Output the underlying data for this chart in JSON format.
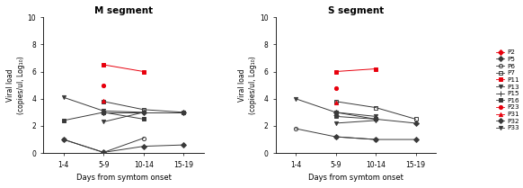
{
  "title_left": "M segment",
  "title_right": "S segment",
  "xlabel": "Days from symtom onset",
  "ylabel": "Viral load\n(copies/ul, Log₁₀)",
  "xtick_labels": [
    "1-4",
    "5-9",
    "10-14",
    "15-19"
  ],
  "ylim": [
    0,
    10
  ],
  "yticks": [
    0,
    2,
    4,
    6,
    8,
    10
  ],
  "patients": {
    "P2": {
      "color": "#e8000d",
      "marker": "D",
      "dead": true,
      "mfc": "#e8000d"
    },
    "P5": {
      "color": "#3a3a3a",
      "marker": "D",
      "dead": false,
      "mfc": "#3a3a3a"
    },
    "P6": {
      "color": "#3a3a3a",
      "marker": "o",
      "dead": false,
      "mfc": "none"
    },
    "P7": {
      "color": "#3a3a3a",
      "marker": "s",
      "dead": false,
      "mfc": "none"
    },
    "P11": {
      "color": "#e8000d",
      "marker": "s",
      "dead": true,
      "mfc": "#e8000d"
    },
    "P13": {
      "color": "#3a3a3a",
      "marker": "v",
      "dead": false,
      "mfc": "#3a3a3a"
    },
    "P15": {
      "color": "#3a3a3a",
      "marker": "+",
      "dead": false,
      "mfc": "#3a3a3a"
    },
    "P16": {
      "color": "#3a3a3a",
      "marker": "s",
      "dead": false,
      "mfc": "#3a3a3a"
    },
    "P23": {
      "color": "#e8000d",
      "marker": "o",
      "dead": true,
      "mfc": "#e8000d"
    },
    "P31": {
      "color": "#e8000d",
      "marker": "^",
      "dead": true,
      "mfc": "#e8000d"
    },
    "P32": {
      "color": "#3a3a3a",
      "marker": "D",
      "dead": false,
      "mfc": "#3a3a3a"
    },
    "P33": {
      "color": "#3a3a3a",
      "marker": "v",
      "dead": false,
      "mfc": "#3a3a3a"
    }
  },
  "M_data": {
    "P2": [
      null,
      null,
      null,
      null
    ],
    "P5": [
      null,
      3.0,
      3.0,
      3.0
    ],
    "P6": [
      1.0,
      0.05,
      1.1,
      null
    ],
    "P7": [
      null,
      3.8,
      3.2,
      3.0
    ],
    "P11": [
      null,
      6.5,
      6.0,
      null
    ],
    "P13": [
      4.1,
      3.1,
      3.0,
      null
    ],
    "P15": [
      null,
      3.0,
      null,
      null
    ],
    "P16": [
      2.4,
      3.0,
      2.5,
      null
    ],
    "P23": [
      null,
      5.0,
      null,
      null
    ],
    "P31": [
      null,
      3.85,
      null,
      null
    ],
    "P32": [
      1.0,
      0.05,
      0.5,
      0.6
    ],
    "P33": [
      null,
      2.3,
      3.0,
      null
    ]
  },
  "S_data": {
    "P2": [
      null,
      null,
      null,
      null
    ],
    "P5": [
      null,
      3.0,
      2.5,
      2.2
    ],
    "P6": [
      1.8,
      1.2,
      1.0,
      null
    ],
    "P7": [
      null,
      3.8,
      3.35,
      2.5
    ],
    "P11": [
      null,
      6.0,
      6.2,
      null
    ],
    "P13": [
      4.0,
      3.0,
      2.7,
      null
    ],
    "P15": [
      null,
      2.8,
      null,
      null
    ],
    "P16": [
      null,
      2.7,
      2.5,
      null
    ],
    "P23": [
      null,
      4.8,
      null,
      null
    ],
    "P31": [
      null,
      3.7,
      null,
      null
    ],
    "P32": [
      null,
      1.2,
      1.0,
      1.0
    ],
    "P33": [
      null,
      2.2,
      2.4,
      null
    ]
  },
  "legend_order": [
    "P2",
    "P5",
    "P6",
    "P7",
    "P11",
    "P13",
    "P15",
    "P16",
    "P23",
    "P31",
    "P32",
    "P33"
  ],
  "background": "#ffffff",
  "gray_line": "#555555"
}
